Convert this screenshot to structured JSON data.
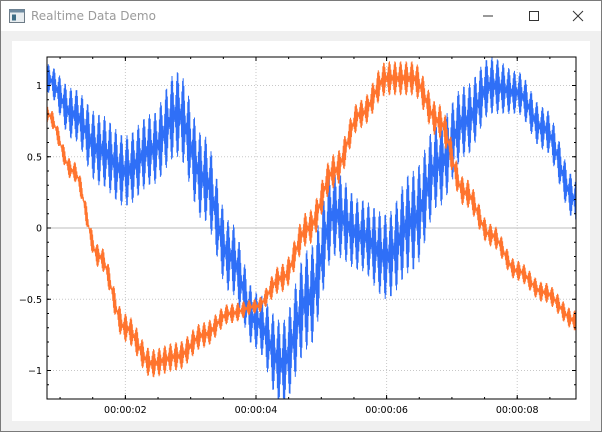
{
  "window": {
    "title": "Realtime Data Demo",
    "icons": {
      "app": "qt-window-icon",
      "minimize": "minimize-icon",
      "maximize": "maximize-icon",
      "close": "close-icon"
    }
  },
  "colors": {
    "series1": "#2f6ff7",
    "series2": "#ff742e",
    "grid": "#c8c8c8",
    "zero_line": "#bdbdbd"
  },
  "chart_data": {
    "type": "line",
    "title": "",
    "xlabel": "",
    "ylabel": "",
    "x_axis_type": "time",
    "xlim": [
      "00:00:00.8",
      "00:00:08.9"
    ],
    "ylim": [
      -1.2,
      1.2
    ],
    "grid": true,
    "legend": "none",
    "x_ticks": [
      "00:00:02",
      "00:00:04",
      "00:00:06",
      "00:00:08"
    ],
    "y_ticks": [
      "1",
      "0.5",
      "0",
      "−0.5",
      "−1"
    ],
    "series": [
      {
        "color": "#2f6ff7",
        "x": [
          "00:00:00.8",
          "00:00:01.2",
          "00:00:01.6",
          "00:00:02.0",
          "00:00:02.4",
          "00:00:02.8",
          "00:00:03.2",
          "00:00:03.6",
          "00:00:04.0",
          "00:00:04.4",
          "00:00:04.8",
          "00:00:05.2",
          "00:00:05.6",
          "00:00:06.0",
          "00:00:06.4",
          "00:00:06.8",
          "00:00:07.2",
          "00:00:07.6",
          "00:00:08.0",
          "00:00:08.4",
          "00:00:08.9"
        ],
        "y": [
          1.05,
          0.8,
          0.55,
          0.4,
          0.55,
          0.8,
          0.35,
          -0.2,
          -0.65,
          -0.95,
          -0.5,
          0.1,
          -0.05,
          -0.2,
          0.05,
          0.45,
          0.75,
          1.0,
          0.95,
          0.7,
          0.2
        ],
        "noise_amplitude": [
          0.1,
          0.18,
          0.25,
          0.25,
          0.25,
          0.3,
          0.3,
          0.25,
          0.2,
          0.3,
          0.35,
          0.3,
          0.25,
          0.3,
          0.35,
          0.3,
          0.25,
          0.2,
          0.15,
          0.15,
          0.15
        ]
      },
      {
        "color": "#ff742e",
        "x": [
          "00:00:00.8",
          "00:00:01.2",
          "00:00:01.6",
          "00:00:02.0",
          "00:00:02.4",
          "00:00:02.8",
          "00:00:03.2",
          "00:00:03.6",
          "00:00:04.0",
          "00:00:04.4",
          "00:00:04.8",
          "00:00:05.2",
          "00:00:05.6",
          "00:00:06.0",
          "00:00:06.4",
          "00:00:06.8",
          "00:00:07.2",
          "00:00:07.6",
          "00:00:08.0",
          "00:00:08.4",
          "00:00:08.9"
        ],
        "y": [
          0.8,
          0.4,
          -0.2,
          -0.7,
          -0.95,
          -0.9,
          -0.75,
          -0.6,
          -0.55,
          -0.35,
          0.0,
          0.4,
          0.8,
          1.05,
          1.05,
          0.75,
          0.25,
          -0.05,
          -0.3,
          -0.45,
          -0.65
        ],
        "noise_amplitude": [
          0.06,
          0.07,
          0.08,
          0.1,
          0.1,
          0.1,
          0.09,
          0.07,
          0.05,
          0.1,
          0.12,
          0.12,
          0.1,
          0.12,
          0.12,
          0.12,
          0.1,
          0.08,
          0.07,
          0.07,
          0.07
        ]
      }
    ]
  }
}
